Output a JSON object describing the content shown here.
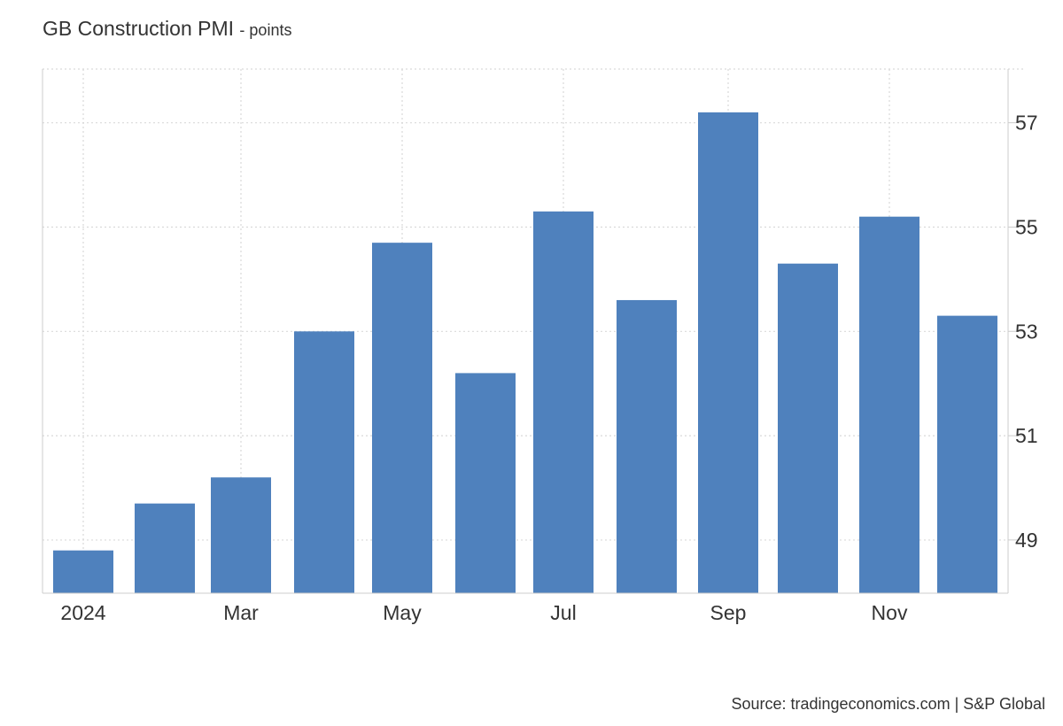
{
  "title": "GB Construction PMI",
  "unit_label": "- points",
  "source": "Source: tradingeconomics.com | S&P Global",
  "chart_data": {
    "type": "bar",
    "title": "GB Construction PMI",
    "subtitle": "- points",
    "categories": [
      "Jan 2024",
      "Feb 2024",
      "Mar 2024",
      "Apr 2024",
      "May 2024",
      "Jun 2024",
      "Jul 2024",
      "Aug 2024",
      "Sep 2024",
      "Oct 2024",
      "Nov 2024",
      "Dec 2024"
    ],
    "values": [
      48.8,
      49.7,
      50.2,
      53.0,
      54.7,
      52.2,
      55.3,
      53.6,
      57.2,
      54.3,
      55.2,
      53.3
    ],
    "x_tick_labels": [
      {
        "index": 0,
        "label": "2024"
      },
      {
        "index": 2,
        "label": "Mar"
      },
      {
        "index": 4,
        "label": "May"
      },
      {
        "index": 6,
        "label": "Jul"
      },
      {
        "index": 8,
        "label": "Sep"
      },
      {
        "index": 10,
        "label": "Nov"
      }
    ],
    "y_ticks": [
      49,
      51,
      53,
      55,
      57
    ],
    "ylim": [
      47.98,
      58.03
    ],
    "y_axis_side": "right",
    "grid": true,
    "bar_color": "#4f81bd",
    "grid_color": "#d9d9d9"
  }
}
